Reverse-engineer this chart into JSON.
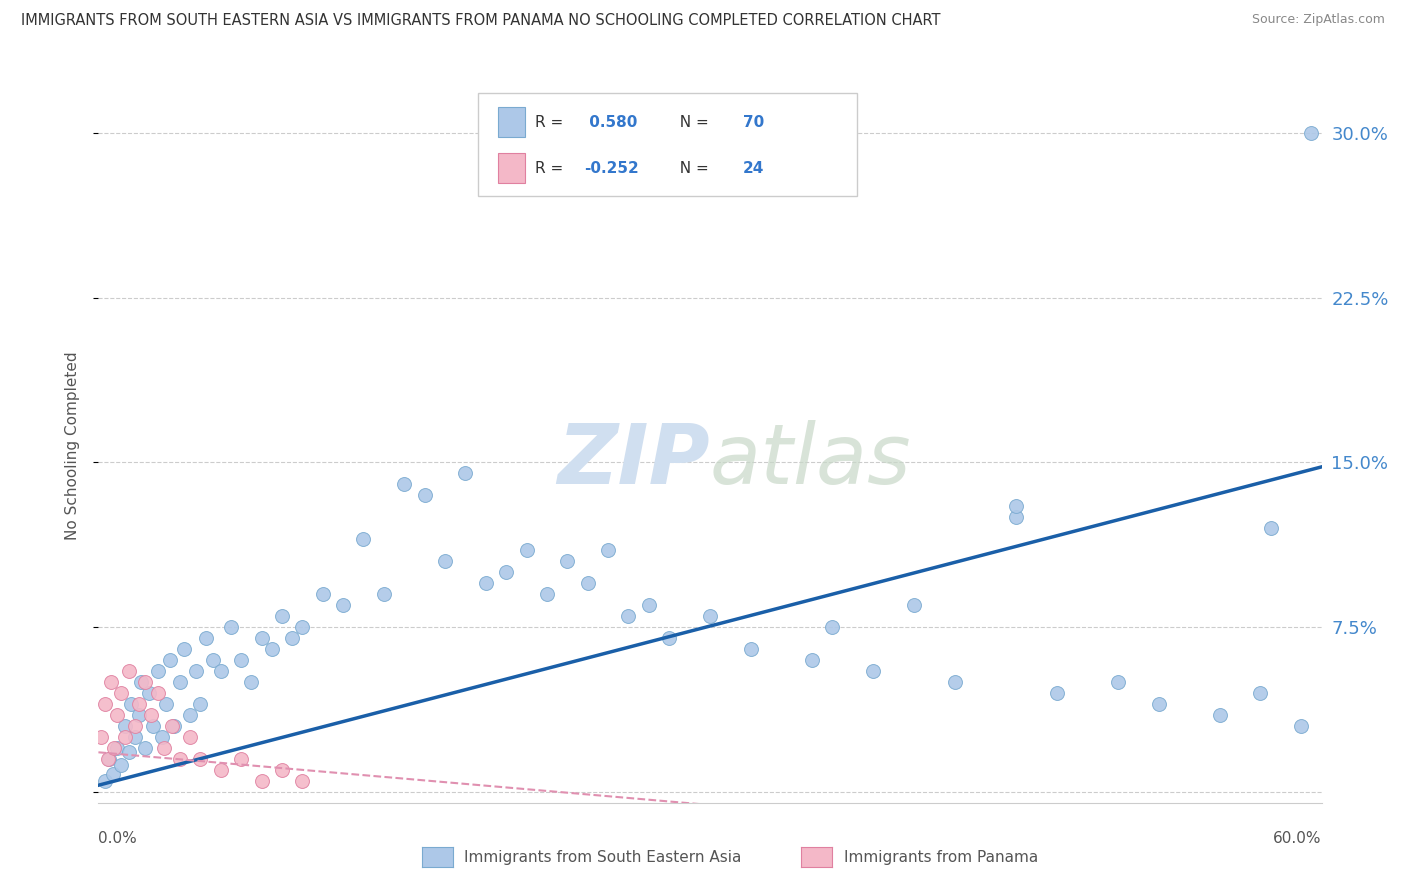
{
  "title": "IMMIGRANTS FROM SOUTH EASTERN ASIA VS IMMIGRANTS FROM PANAMA NO SCHOOLING COMPLETED CORRELATION CHART",
  "source": "Source: ZipAtlas.com",
  "ylabel": "No Schooling Completed",
  "ytick_values": [
    0.0,
    7.5,
    15.0,
    22.5,
    30.0
  ],
  "xlim": [
    0.0,
    60.0
  ],
  "ylim": [
    -0.5,
    32.0
  ],
  "blue_R": 0.58,
  "blue_N": 70,
  "pink_R": -0.252,
  "pink_N": 24,
  "blue_color": "#adc8e8",
  "blue_edge": "#7aaad0",
  "pink_color": "#f4b8c8",
  "pink_edge": "#e080a0",
  "blue_line_color": "#1a5fa8",
  "pink_line_color": "#e090b0",
  "watermark_color": "#d0dff0",
  "legend_label_blue": "Immigrants from South Eastern Asia",
  "legend_label_pink": "Immigrants from Panama",
  "blue_scatter_x": [
    0.3,
    0.5,
    0.7,
    0.9,
    1.1,
    1.3,
    1.5,
    1.6,
    1.8,
    2.0,
    2.1,
    2.3,
    2.5,
    2.7,
    2.9,
    3.1,
    3.3,
    3.5,
    3.7,
    4.0,
    4.2,
    4.5,
    4.8,
    5.0,
    5.3,
    5.6,
    6.0,
    6.5,
    7.0,
    7.5,
    8.0,
    8.5,
    9.0,
    9.5,
    10.0,
    11.0,
    12.0,
    13.0,
    14.0,
    15.0,
    16.0,
    17.0,
    18.0,
    19.0,
    20.0,
    21.0,
    22.0,
    23.0,
    24.0,
    25.0,
    26.0,
    27.0,
    28.0,
    30.0,
    32.0,
    35.0,
    36.0,
    38.0,
    40.0,
    42.0,
    45.0,
    47.0,
    50.0,
    52.0,
    55.0,
    57.0,
    59.0,
    59.5,
    45.0,
    57.5
  ],
  "blue_scatter_y": [
    0.5,
    1.5,
    0.8,
    2.0,
    1.2,
    3.0,
    1.8,
    4.0,
    2.5,
    3.5,
    5.0,
    2.0,
    4.5,
    3.0,
    5.5,
    2.5,
    4.0,
    6.0,
    3.0,
    5.0,
    6.5,
    3.5,
    5.5,
    4.0,
    7.0,
    6.0,
    5.5,
    7.5,
    6.0,
    5.0,
    7.0,
    6.5,
    8.0,
    7.0,
    7.5,
    9.0,
    8.5,
    11.5,
    9.0,
    14.0,
    13.5,
    10.5,
    14.5,
    9.5,
    10.0,
    11.0,
    9.0,
    10.5,
    9.5,
    11.0,
    8.0,
    8.5,
    7.0,
    8.0,
    6.5,
    6.0,
    7.5,
    5.5,
    8.5,
    5.0,
    12.5,
    4.5,
    5.0,
    4.0,
    3.5,
    4.5,
    3.0,
    30.0,
    13.0,
    12.0
  ],
  "pink_scatter_x": [
    0.15,
    0.3,
    0.45,
    0.6,
    0.75,
    0.9,
    1.1,
    1.3,
    1.5,
    1.8,
    2.0,
    2.3,
    2.6,
    2.9,
    3.2,
    3.6,
    4.0,
    4.5,
    5.0,
    6.0,
    7.0,
    8.0,
    9.0,
    10.0
  ],
  "pink_scatter_y": [
    2.5,
    4.0,
    1.5,
    5.0,
    2.0,
    3.5,
    4.5,
    2.5,
    5.5,
    3.0,
    4.0,
    5.0,
    3.5,
    4.5,
    2.0,
    3.0,
    1.5,
    2.5,
    1.5,
    1.0,
    1.5,
    0.5,
    1.0,
    0.5
  ]
}
